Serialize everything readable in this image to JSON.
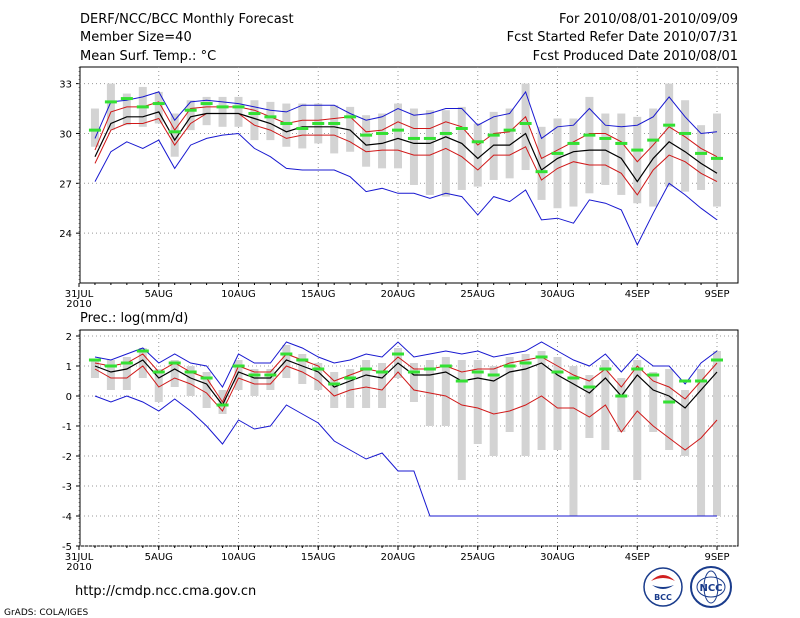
{
  "header": {
    "title": "DERF/NCC/BCC Monthly Forecast",
    "member_size": "Member Size=40",
    "variable": "Mean Surf. Temp.: °C",
    "period": "For 2010/08/01-2010/09/09",
    "start_ref": "Fcst Started Refer Date 2010/07/31",
    "produced": "Fcst Produced Date 2010/08/01"
  },
  "footer": {
    "url": "http://cmdp.ncc.cma.gov.cn",
    "credit": "GrADS: COLA/IGES",
    "logo_bcc": "BCC",
    "logo_ncc": "NCC"
  },
  "colors": {
    "mean": "#000000",
    "spread": "#d01818",
    "extreme": "#1818d0",
    "obs": "#33e033",
    "box": "#d3d3d3"
  },
  "chart_data": [
    {
      "type": "line",
      "ylabel": "",
      "ylim": [
        21,
        34
      ],
      "yticks": [
        24,
        27,
        30,
        33
      ],
      "x_labels": [
        {
          "day": 0,
          "label": "31JUL"
        },
        {
          "day": 5,
          "label": "5AUG"
        },
        {
          "day": 10,
          "label": "10AUG"
        },
        {
          "day": 15,
          "label": "15AUG"
        },
        {
          "day": 20,
          "label": "20AUG"
        },
        {
          "day": 25,
          "label": "25AUG"
        },
        {
          "day": 30,
          "label": "30AUG"
        },
        {
          "day": 35,
          "label": "4SEP"
        },
        {
          "day": 40,
          "label": "9SEP"
        }
      ],
      "year_label": "2010",
      "days": [
        1,
        2,
        3,
        4,
        5,
        6,
        7,
        8,
        9,
        10,
        11,
        12,
        13,
        14,
        15,
        16,
        17,
        18,
        19,
        20,
        21,
        22,
        23,
        24,
        25,
        26,
        27,
        28,
        29,
        30,
        31,
        32,
        33,
        34,
        35,
        36,
        37,
        38,
        39,
        40
      ],
      "mean": [
        28.6,
        30.6,
        31.0,
        31.0,
        31.3,
        29.6,
        31.0,
        31.2,
        31.2,
        31.2,
        30.9,
        30.6,
        30.1,
        30.4,
        30.4,
        30.4,
        30.2,
        29.3,
        29.4,
        29.7,
        29.4,
        29.4,
        29.8,
        29.4,
        28.5,
        29.3,
        29.3,
        30.0,
        27.8,
        28.5,
        28.9,
        29.0,
        29.0,
        28.5,
        27.1,
        28.5,
        29.5,
        28.9,
        28.2,
        27.6
      ],
      "upper": [
        29.0,
        31.3,
        31.6,
        31.6,
        31.9,
        30.2,
        31.5,
        31.6,
        31.6,
        31.6,
        31.4,
        31.0,
        30.6,
        30.8,
        30.8,
        30.9,
        31.0,
        30.1,
        30.2,
        30.7,
        30.3,
        30.3,
        30.7,
        30.4,
        29.3,
        30.0,
        30.1,
        31.0,
        28.5,
        29.0,
        29.5,
        30.0,
        30.0,
        29.5,
        28.3,
        29.3,
        30.4,
        29.8,
        29.1,
        28.6
      ],
      "lower": [
        28.2,
        30.2,
        30.6,
        30.6,
        30.9,
        29.3,
        30.6,
        31.2,
        31.2,
        31.2,
        30.5,
        30.2,
        29.7,
        29.9,
        29.9,
        29.9,
        29.5,
        28.9,
        29.0,
        29.0,
        28.7,
        28.7,
        29.1,
        28.6,
        27.8,
        28.7,
        28.7,
        29.2,
        27.2,
        27.9,
        28.3,
        28.1,
        28.1,
        27.6,
        26.3,
        27.8,
        28.7,
        28.3,
        27.6,
        27.1
      ],
      "max": [
        29.7,
        31.9,
        32.0,
        32.2,
        32.5,
        30.8,
        31.9,
        32.0,
        31.9,
        31.8,
        31.6,
        31.4,
        31.3,
        31.7,
        31.7,
        31.7,
        31.2,
        30.8,
        31.0,
        31.5,
        31.1,
        31.2,
        31.5,
        31.5,
        30.5,
        31.0,
        31.2,
        32.5,
        29.7,
        30.4,
        30.5,
        31.5,
        30.5,
        30.4,
        30.5,
        31.0,
        32.2,
        31.0,
        30.0,
        30.1
      ],
      "min": [
        27.1,
        28.9,
        29.5,
        29.1,
        29.6,
        27.9,
        29.3,
        29.7,
        29.9,
        30.0,
        29.1,
        28.6,
        27.9,
        27.8,
        27.8,
        27.8,
        27.4,
        26.5,
        26.7,
        26.4,
        26.4,
        26.1,
        26.4,
        26.2,
        25.1,
        26.2,
        25.9,
        26.6,
        24.8,
        24.9,
        24.6,
        26.0,
        25.8,
        25.4,
        23.3,
        25.2,
        27.0,
        26.3,
        25.5,
        24.8
      ],
      "box_top": [
        31.5,
        33.0,
        32.4,
        32.8,
        32.5,
        31.2,
        32.0,
        32.2,
        32.2,
        32.2,
        32.0,
        31.9,
        31.8,
        31.8,
        31.8,
        31.7,
        31.6,
        31.1,
        31.2,
        31.8,
        31.5,
        31.4,
        31.4,
        31.6,
        30.6,
        31.3,
        31.5,
        33.0,
        30.4,
        30.9,
        30.9,
        32.2,
        31.2,
        31.2,
        31.0,
        31.5,
        33.0,
        32.0,
        30.5,
        31.2
      ],
      "box_bot": [
        29.2,
        30.2,
        30.5,
        30.4,
        30.6,
        28.6,
        30.2,
        30.5,
        30.4,
        30.4,
        29.6,
        29.6,
        29.2,
        29.1,
        29.4,
        28.8,
        28.9,
        28.0,
        27.9,
        27.9,
        26.9,
        26.3,
        26.2,
        26.6,
        26.8,
        27.2,
        27.3,
        27.8,
        26.0,
        25.5,
        25.6,
        26.4,
        26.9,
        26.3,
        25.8,
        25.6,
        26.8,
        26.5,
        26.6,
        25.6
      ],
      "obs": [
        30.2,
        31.9,
        32.1,
        31.6,
        31.8,
        30.1,
        31.4,
        31.8,
        31.6,
        31.6,
        31.2,
        31.0,
        30.6,
        30.3,
        30.6,
        30.6,
        31.0,
        29.9,
        30.0,
        30.2,
        29.7,
        29.7,
        30.0,
        30.3,
        29.5,
        29.9,
        30.2,
        30.6,
        27.7,
        28.8,
        29.4,
        29.9,
        29.7,
        29.4,
        29.0,
        29.6,
        30.5,
        30.0,
        28.8,
        28.5
      ]
    },
    {
      "type": "line",
      "title": "Prec.: log(mm/d)",
      "ylim": [
        -5,
        2.2
      ],
      "yticks": [
        -5,
        -4,
        -3,
        -2,
        -1,
        0,
        1,
        2
      ],
      "x_labels": [
        {
          "day": 0,
          "label": "31JUL"
        },
        {
          "day": 5,
          "label": "5AUG"
        },
        {
          "day": 10,
          "label": "10AUG"
        },
        {
          "day": 15,
          "label": "15AUG"
        },
        {
          "day": 20,
          "label": "20AUG"
        },
        {
          "day": 25,
          "label": "25AUG"
        },
        {
          "day": 30,
          "label": "30AUG"
        },
        {
          "day": 35,
          "label": "4SEP"
        },
        {
          "day": 40,
          "label": "9SEP"
        }
      ],
      "year_label": "2010",
      "days": [
        1,
        2,
        3,
        4,
        5,
        6,
        7,
        8,
        9,
        10,
        11,
        12,
        13,
        14,
        15,
        16,
        17,
        18,
        19,
        20,
        21,
        22,
        23,
        24,
        25,
        26,
        27,
        28,
        29,
        30,
        31,
        32,
        33,
        34,
        35,
        36,
        37,
        38,
        39,
        40
      ],
      "mean": [
        1.0,
        0.8,
        0.9,
        1.2,
        0.6,
        0.9,
        0.6,
        0.4,
        -0.3,
        0.8,
        0.6,
        0.6,
        1.2,
        1.0,
        0.8,
        0.3,
        0.5,
        0.7,
        0.6,
        1.1,
        0.7,
        0.7,
        0.8,
        0.5,
        0.6,
        0.5,
        0.8,
        0.9,
        1.1,
        0.7,
        0.4,
        0.1,
        0.6,
        0.0,
        0.7,
        0.2,
        0.0,
        -0.4,
        0.2,
        0.8
      ],
      "upper": [
        1.1,
        1.0,
        1.1,
        1.4,
        0.8,
        1.1,
        0.8,
        0.6,
        -0.2,
        1.0,
        0.8,
        0.8,
        1.4,
        1.2,
        1.0,
        0.5,
        0.7,
        0.9,
        0.8,
        1.3,
        0.9,
        0.9,
        1.0,
        0.8,
        0.9,
        0.9,
        1.1,
        1.2,
        1.3,
        1.0,
        0.7,
        0.5,
        0.9,
        0.3,
        1.0,
        0.5,
        0.3,
        -0.1,
        0.5,
        1.1
      ],
      "lower": [
        0.9,
        0.6,
        0.6,
        1.0,
        0.3,
        0.6,
        0.4,
        0.1,
        -0.5,
        0.6,
        0.4,
        0.4,
        1.0,
        0.8,
        0.5,
        0.0,
        0.2,
        0.3,
        0.2,
        0.8,
        0.2,
        0.1,
        0.0,
        -0.3,
        -0.4,
        -0.6,
        -0.5,
        -0.3,
        0.0,
        -0.4,
        -0.4,
        -0.7,
        -0.3,
        -1.2,
        -0.5,
        -1.0,
        -1.4,
        -1.8,
        -1.4,
        -0.8
      ],
      "max": [
        1.3,
        1.2,
        1.4,
        1.6,
        1.1,
        1.4,
        1.1,
        1.0,
        0.3,
        1.4,
        1.1,
        1.1,
        1.8,
        1.6,
        1.3,
        1.1,
        1.2,
        1.4,
        1.3,
        1.8,
        1.3,
        1.4,
        1.5,
        1.4,
        1.5,
        1.3,
        1.4,
        1.5,
        1.8,
        1.5,
        1.2,
        1.0,
        1.4,
        0.8,
        1.4,
        1.0,
        1.0,
        0.4,
        1.1,
        1.5
      ],
      "min": [
        0.0,
        -0.2,
        0.0,
        -0.2,
        -0.5,
        -0.1,
        -0.5,
        -1.0,
        -1.6,
        -0.8,
        -1.1,
        -1.0,
        -0.3,
        -0.6,
        -0.9,
        -1.5,
        -1.8,
        -2.1,
        -1.9,
        -2.5,
        -2.5,
        -4.0,
        -4.0,
        -4.0,
        -4.0,
        -4.0,
        -4.0,
        -4.0,
        -4.0,
        -4.0,
        -4.0,
        -4.0,
        -4.0,
        -4.0,
        -4.0,
        -4.0,
        -4.0,
        -4.0,
        -4.0,
        -4.0
      ],
      "box_top": [
        1.2,
        1.2,
        1.3,
        1.6,
        0.9,
        1.2,
        1.0,
        0.8,
        0.2,
        1.2,
        0.9,
        0.9,
        1.7,
        1.4,
        1.1,
        0.8,
        0.9,
        1.2,
        1.1,
        1.6,
        1.1,
        1.2,
        1.3,
        1.2,
        1.2,
        1.0,
        1.3,
        1.4,
        1.5,
        1.3,
        1.0,
        0.7,
        1.2,
        0.6,
        1.2,
        0.8,
        0.9,
        0.2,
        0.9,
        1.5
      ],
      "box_bot": [
        0.6,
        0.2,
        0.2,
        0.6,
        -0.2,
        0.3,
        0.0,
        -0.4,
        -0.6,
        0.2,
        0.0,
        0.2,
        0.6,
        0.4,
        0.2,
        -0.4,
        -0.4,
        -0.4,
        -0.4,
        0.6,
        -0.2,
        -1.0,
        -1.0,
        -2.8,
        -1.6,
        -2.0,
        -1.2,
        -2.0,
        -1.8,
        -1.8,
        -4.0,
        -1.4,
        -1.8,
        -1.2,
        -2.8,
        -1.2,
        -1.8,
        -2.0,
        -4.0,
        -4.0
      ],
      "obs": [
        1.2,
        1.0,
        1.1,
        1.5,
        0.8,
        1.1,
        0.8,
        0.6,
        -0.3,
        1.0,
        0.7,
        0.7,
        1.4,
        1.2,
        0.9,
        0.4,
        0.6,
        0.9,
        0.8,
        1.4,
        0.8,
        0.9,
        1.0,
        0.5,
        0.8,
        0.7,
        1.0,
        1.1,
        1.3,
        0.8,
        0.6,
        0.3,
        0.9,
        0.0,
        0.9,
        0.7,
        -0.2,
        0.5,
        0.5,
        1.2
      ]
    }
  ]
}
